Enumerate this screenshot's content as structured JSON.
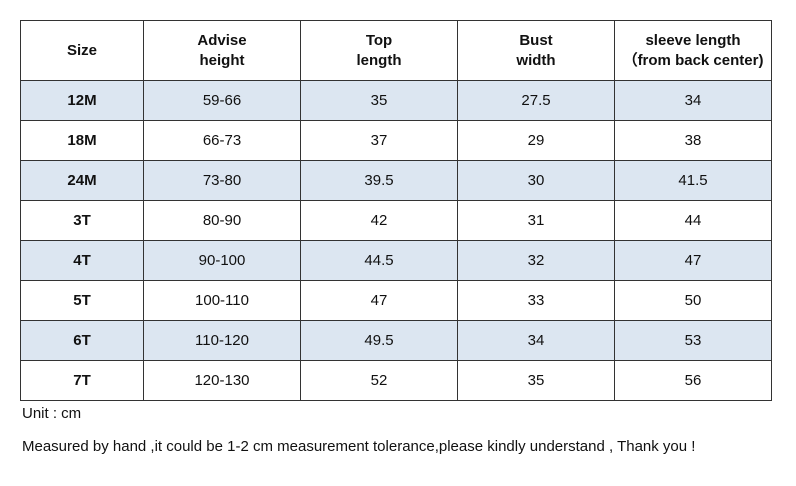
{
  "table": {
    "header": [
      [
        "Size"
      ],
      [
        "Advise",
        "height"
      ],
      [
        "Top",
        "length"
      ],
      [
        "Bust",
        "width"
      ],
      [
        "sleeve length",
        "（from back center)"
      ]
    ],
    "rows": [
      [
        "12M",
        "59-66",
        "35",
        "27.5",
        "34"
      ],
      [
        "18M",
        "66-73",
        "37",
        "29",
        "38"
      ],
      [
        "24M",
        "73-80",
        "39.5",
        "30",
        "41.5"
      ],
      [
        "3T",
        "80-90",
        "42",
        "31",
        "44"
      ],
      [
        "4T",
        "90-100",
        "44.5",
        "32",
        "47"
      ],
      [
        "5T",
        "100-110",
        "47",
        "33",
        "50"
      ],
      [
        "6T",
        "110-120",
        "49.5",
        "34",
        "53"
      ],
      [
        "7T",
        "120-130",
        "52",
        "35",
        "56"
      ]
    ]
  },
  "notes": [
    "Unit : cm",
    "Measured by hand ,it could be 1-2 cm measurement tolerance,please kindly understand , Thank you !"
  ]
}
